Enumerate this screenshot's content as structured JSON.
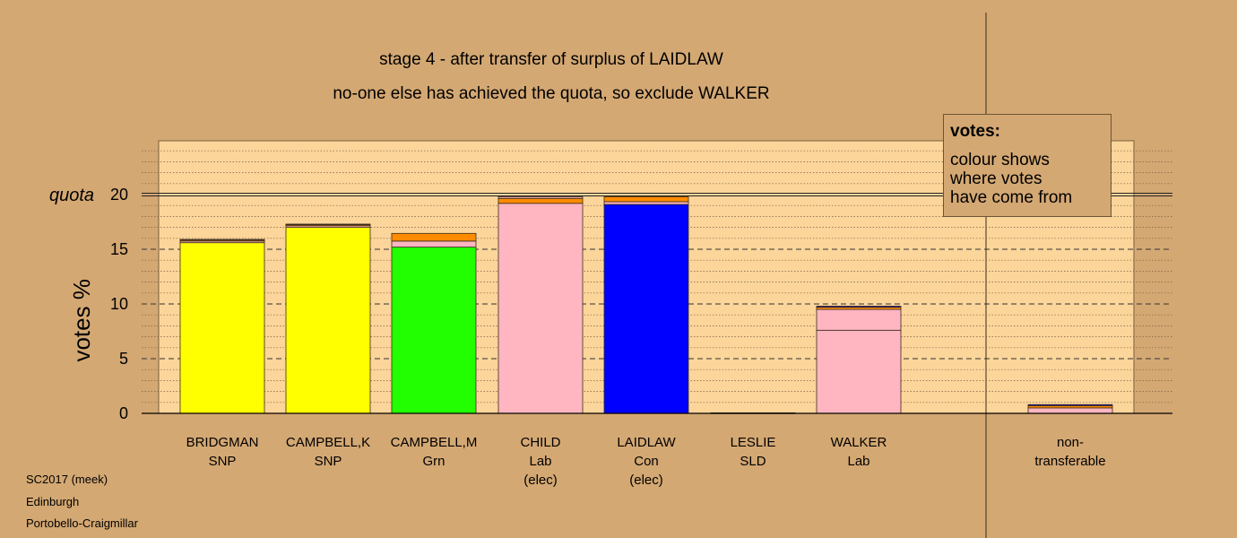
{
  "title_line1": "stage 4 - after transfer of surplus of LAIDLAW",
  "title_line2": "no-one else has achieved the quota, so exclude WALKER",
  "legend": {
    "heading": "votes:",
    "lines": [
      "colour shows",
      "where votes",
      "have come from"
    ]
  },
  "footer": [
    "SC2017 (meek)",
    "Edinburgh",
    "Portobello-Craigmillar"
  ],
  "chart_data": {
    "type": "bar",
    "stacked": true,
    "ylabel": "votes %",
    "quota_label": "quota",
    "quota": 20,
    "ylim": [
      0,
      25
    ],
    "yticks": [
      0,
      5,
      10,
      15,
      20
    ],
    "grid": true,
    "legend_placement": "top-right",
    "categories": [
      {
        "lines": [
          "BRIDGMAN",
          "SNP"
        ],
        "segments": [
          {
            "value": 15.6,
            "color": "#ffff00"
          },
          {
            "value": 0.15,
            "color": "#ffb6c1"
          },
          {
            "value": 0.1,
            "color": "#ff8c00"
          },
          {
            "value": 0.05,
            "color": "#0000ff"
          }
        ]
      },
      {
        "lines": [
          "CAMPBELL,K",
          "SNP"
        ],
        "segments": [
          {
            "value": 17.0,
            "color": "#ffff00"
          },
          {
            "value": 0.15,
            "color": "#ffb6c1"
          },
          {
            "value": 0.1,
            "color": "#ff8c00"
          },
          {
            "value": 0.05,
            "color": "#0000ff"
          }
        ]
      },
      {
        "lines": [
          "CAMPBELL,M",
          "Grn"
        ],
        "segments": [
          {
            "value": 15.2,
            "color": "#22ff00"
          },
          {
            "value": 0.55,
            "color": "#ffb6c1"
          },
          {
            "value": 0.7,
            "color": "#ff8c00"
          }
        ]
      },
      {
        "lines": [
          "CHILD",
          "Lab",
          "(elec)"
        ],
        "segments": [
          {
            "value": 19.2,
            "color": "#ffb6c1"
          },
          {
            "value": 0.45,
            "color": "#ff8c00"
          },
          {
            "value": 0.15,
            "color": "#ffb6c1"
          }
        ]
      },
      {
        "lines": [
          "LAIDLAW",
          "Con",
          "(elec)"
        ],
        "segments": [
          {
            "value": 19.1,
            "color": "#0000ff"
          },
          {
            "value": 0.25,
            "color": "#ffb6c1"
          },
          {
            "value": 0.45,
            "color": "#ff8c00"
          }
        ]
      },
      {
        "lines": [
          "LESLIE",
          "SLD"
        ],
        "segments": [
          {
            "value": 0.05,
            "color": "#ffb6c1"
          }
        ]
      },
      {
        "lines": [
          "WALKER",
          "Lab"
        ],
        "segments": [
          {
            "value": 7.6,
            "color": "#ffb6c1"
          },
          {
            "value": 1.9,
            "color": "#ffb6c1"
          },
          {
            "value": 0.2,
            "color": "#ff8c00"
          },
          {
            "value": 0.1,
            "color": "#0000ff"
          }
        ]
      },
      {
        "lines": [
          "non-",
          "transferable"
        ],
        "segments": [
          {
            "value": 0.5,
            "color": "#ffb6c1"
          },
          {
            "value": 0.2,
            "color": "#ff8c00"
          },
          {
            "value": 0.1,
            "color": "#0000ff"
          }
        ]
      }
    ]
  }
}
